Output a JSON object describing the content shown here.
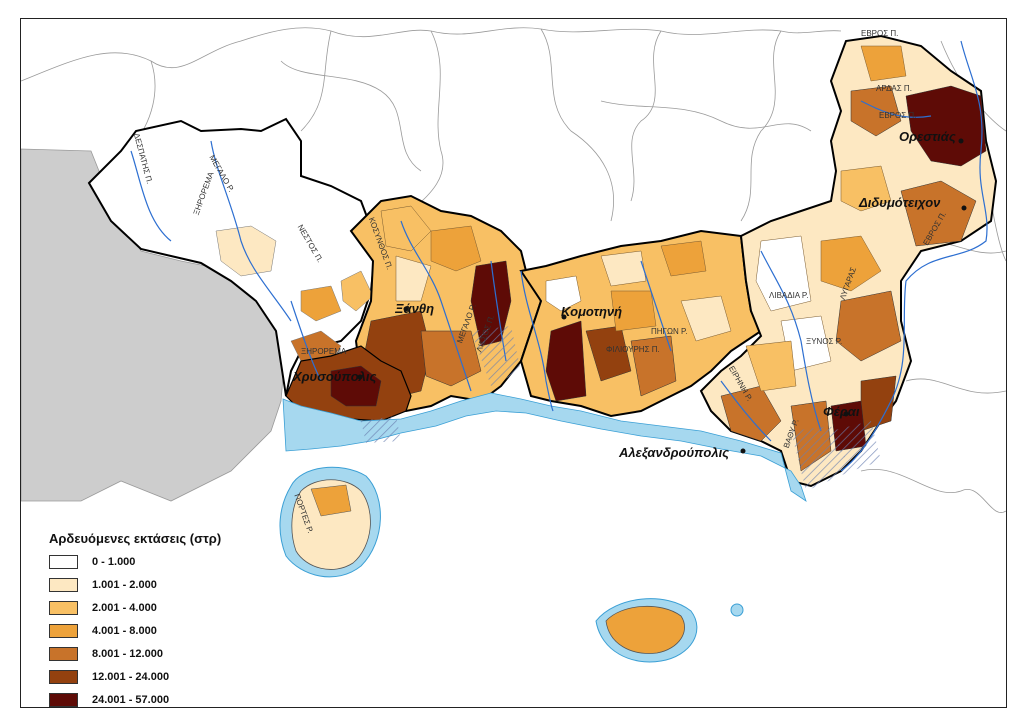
{
  "legend": {
    "title": "Αρδευόμενες εκτάσεις (στρ)",
    "classes": [
      {
        "label": "0 - 1.000",
        "color": "#ffffff"
      },
      {
        "label": "1.001 - 2.000",
        "color": "#fde8c2"
      },
      {
        "label": "2.001 - 4.000",
        "color": "#f8c064"
      },
      {
        "label": "4.001 - 8.000",
        "color": "#eda23a"
      },
      {
        "label": "8.001 - 12.000",
        "color": "#c8732a"
      },
      {
        "label": "12.001 - 24.000",
        "color": "#93410f"
      },
      {
        "label": "24.001 - 57.000",
        "color": "#5e0b06"
      }
    ]
  },
  "cities": {
    "xanthi": "Ξάνθη",
    "komotini": "Κομοτηνή",
    "chrysoupoli": "Χρυσούπολις",
    "alexandroupoli": "Αλεξανδρούπολις",
    "orestiada": "Ορεστιάς",
    "didymoteicho": "Διδυμότειχον",
    "feres": "Φέραι"
  },
  "rivers": {
    "evros_1": "ΕΒΡΟΣ Π.",
    "evros_2": "ΕΒΡΟΣ Π.",
    "evros_3": "ΕΒΡΟΣ Π.",
    "ardas": "ΑΡΔΑΣ Π.",
    "nestos": "ΝΕΣΤΟΣ Π.",
    "despatis": "ΔΕΣΠΑΤΗΣ Π.",
    "megalo_rema_1": "ΜΕΓΑΛΟ Ρ.",
    "megalo_rema_2": "ΜΕΓΑΛΟ Ρ.",
    "xiropotamos": "ΞΗΡΟΡΕΜΑ",
    "xiropotamos_2": "ΞΗΡΟΡΕΜΑ",
    "kosynthos": "ΚΟΣΥΝΘΟΣ Π.",
    "lissos": "ΛΙΣΣΟΣ Π.",
    "lyssos_2": "ΛΥΓΑΡΑΣ",
    "filioris": "ΦΙΛΙΟΥΡΗΣ Π.",
    "livadia": "ΛΙΒΑΔΙΑ Ρ.",
    "xinos": "ΞΥΝΟΣ Ρ.",
    "eirini": "ΕΙΡΗΝΗ Ρ.",
    "vathi": "ΒΑΘΥ Ρ.",
    "portes": "ΠΟΡΤΕΣ Ρ.",
    "pigon": "ΠΗΓΩΝ Ρ."
  }
}
